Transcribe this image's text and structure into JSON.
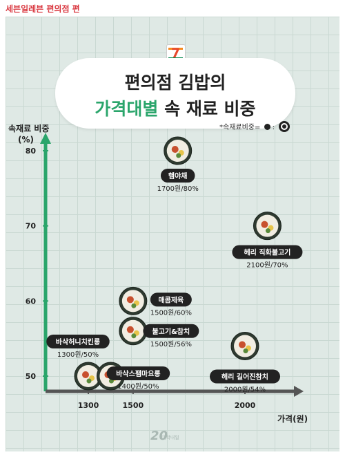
{
  "header": {
    "caption": "세븐일레븐 편의점 편"
  },
  "title": {
    "line1": "편의점 김밥의",
    "line2_highlight": "가격대별",
    "line2_rest": " 속 재료 비중"
  },
  "legend": {
    "text": "*속재료비중= ",
    "colon": " : "
  },
  "watermark": {
    "number": "20",
    "text": "대학내일"
  },
  "colors": {
    "axis": "#2aa56b",
    "pill": "#222222",
    "highlight": "#2aa56b",
    "caption": "#d9363e"
  },
  "chart_data": {
    "type": "scatter",
    "title": "편의점 김밥의 가격대별 속 재료 비중",
    "xlabel": "가격(원)",
    "ylabel": "속재료 비중\n(%)",
    "xlim": [
      1200,
      2200
    ],
    "ylim": [
      48,
      82
    ],
    "x_ticks": [
      1300,
      1500,
      2000
    ],
    "y_ticks": [
      50,
      60,
      70,
      80
    ],
    "grid": true,
    "points": [
      {
        "name": "햄야채",
        "x": 1700,
        "y": 80,
        "label": "1700원/80%"
      },
      {
        "name": "헤리 직화불고기",
        "x": 2100,
        "y": 70,
        "label": "2100원/70%"
      },
      {
        "name": "매콤제육",
        "x": 1500,
        "y": 60,
        "label": "1500원/60%"
      },
      {
        "name": "불고기&참치",
        "x": 1500,
        "y": 56,
        "label": "1500원/56%"
      },
      {
        "name": "바삭허니치킨롱",
        "x": 1300,
        "y": 50,
        "label": "1300원/50%"
      },
      {
        "name": "바삭스팸마요롱",
        "x": 1400,
        "y": 50,
        "label": "1400원/50%"
      },
      {
        "name": "헤리 길어진참치",
        "x": 2000,
        "y": 54,
        "label": "2000원/54%"
      }
    ]
  }
}
